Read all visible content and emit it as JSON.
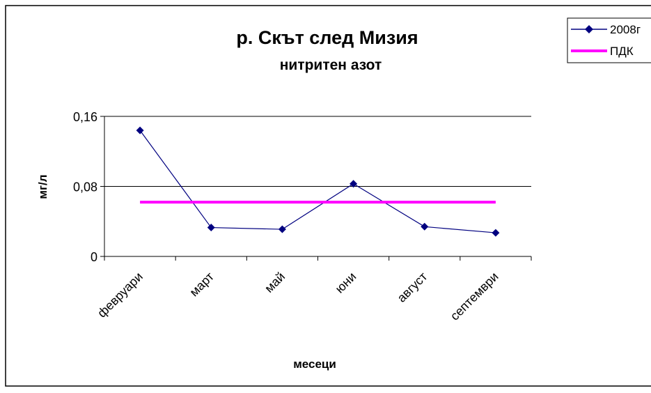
{
  "chart_data": {
    "type": "line",
    "title": "р. Скът след Мизия",
    "subtitle": "нитритен азот",
    "xlabel": "месеци",
    "ylabel": "мг/л",
    "categories": [
      "февруари",
      "март",
      "май",
      "юни",
      "август",
      "септември"
    ],
    "y_ticks": [
      "0",
      "0,08",
      "0,16"
    ],
    "y_tick_values": [
      0,
      0.08,
      0.16
    ],
    "ylim": [
      0,
      0.16
    ],
    "grid": true,
    "legend_position": "top-right",
    "series": [
      {
        "name": "2008г",
        "values": [
          0.144,
          0.033,
          0.031,
          0.083,
          0.034,
          0.027
        ],
        "color": "#000080",
        "marker": "diamond"
      },
      {
        "name": "ПДК",
        "values": [
          0.062,
          0.062,
          0.062,
          0.062,
          0.062,
          0.062
        ],
        "color": "#ff00ff",
        "marker": "none"
      }
    ]
  }
}
